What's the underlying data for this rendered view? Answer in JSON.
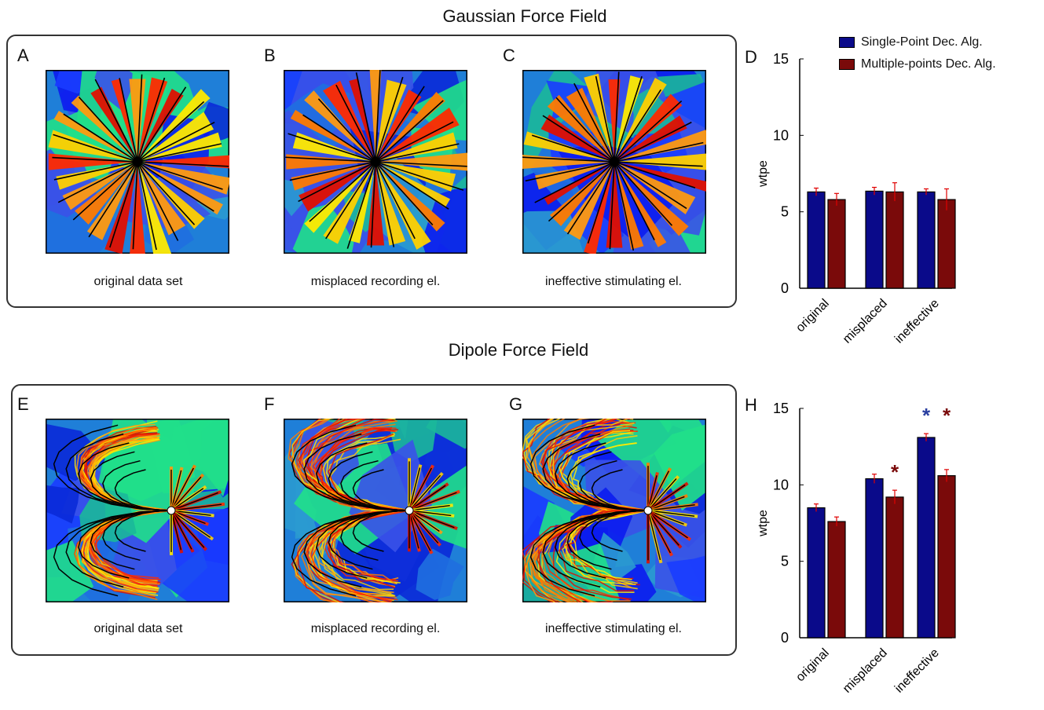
{
  "titles": {
    "top": "Gaussian Force Field",
    "bottom": "Dipole Force Field"
  },
  "panels": {
    "top": [
      {
        "letter": "A",
        "caption": "original data set"
      },
      {
        "letter": "B",
        "caption": "misplaced recording el."
      },
      {
        "letter": "C",
        "caption": "ineffective stimulating el."
      }
    ],
    "bottom": [
      {
        "letter": "E",
        "caption": "original data set"
      },
      {
        "letter": "F",
        "caption": "misplaced recording el."
      },
      {
        "letter": "G",
        "caption": "ineffective stimulating el."
      }
    ]
  },
  "legend": {
    "items": [
      {
        "label": "Single-Point Dec. Alg.",
        "color": "#0a0a8a"
      },
      {
        "label": "Multiple-points Dec. Alg.",
        "color": "#7a0a0a"
      }
    ]
  },
  "colors": {
    "series1": "#0a0a8a",
    "series2": "#7a0a0a",
    "error": "#e00000",
    "star_blue": "#2a3fa0",
    "star_red": "#7a0a0a"
  },
  "chart_data": [
    {
      "type": "bar",
      "panel": "D",
      "categories": [
        "original",
        "misplaced",
        "ineffective"
      ],
      "ylabel": "wtpe",
      "xlabel": "",
      "ylim": [
        0,
        15
      ],
      "yticks": [
        "0",
        "5",
        "10",
        "15"
      ],
      "series": [
        {
          "name": "Single-Point Dec. Alg.",
          "values": [
            6.3,
            6.35,
            6.3
          ],
          "errors": [
            0.25,
            0.25,
            0.2
          ]
        },
        {
          "name": "Multiple-points Dec. Alg.",
          "values": [
            5.8,
            6.3,
            5.8
          ],
          "errors": [
            0.4,
            0.6,
            0.7
          ]
        }
      ],
      "significance": []
    },
    {
      "type": "bar",
      "panel": "H",
      "categories": [
        "original",
        "misplaced",
        "ineffective"
      ],
      "ylabel": "wtpe",
      "xlabel": "",
      "ylim": [
        0,
        15
      ],
      "yticks": [
        "0",
        "5",
        "10",
        "15"
      ],
      "series": [
        {
          "name": "Single-Point Dec. Alg.",
          "values": [
            8.5,
            10.4,
            13.1
          ],
          "errors": [
            0.25,
            0.3,
            0.25
          ]
        },
        {
          "name": "Multiple-points Dec. Alg.",
          "values": [
            7.6,
            9.2,
            10.6
          ],
          "errors": [
            0.3,
            0.45,
            0.4
          ]
        }
      ],
      "significance": [
        {
          "category": 1,
          "series": 1,
          "symbol": "*"
        },
        {
          "category": 2,
          "series": 0,
          "symbol": "*"
        },
        {
          "category": 2,
          "series": 1,
          "symbol": "*"
        }
      ]
    }
  ]
}
